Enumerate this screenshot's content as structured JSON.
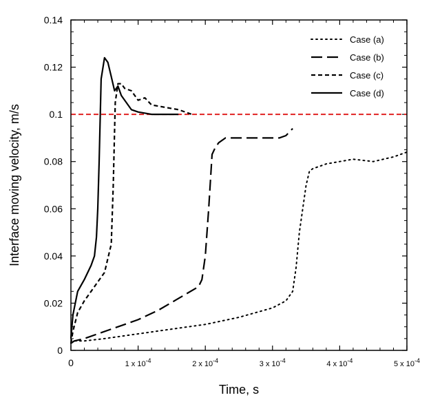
{
  "chart_data": {
    "type": "line",
    "title": "",
    "xlabel": "Time,  s",
    "ylabel": "Interface moving velocity,  m/s",
    "xlim": [
      0,
      0.0005
    ],
    "ylim": [
      0,
      0.14
    ],
    "x_ticks": [
      {
        "value": 0,
        "label": "0"
      },
      {
        "value": 0.0001,
        "label": "1 x 10",
        "exp": "-4"
      },
      {
        "value": 0.0002,
        "label": "2 x 10",
        "exp": "-4"
      },
      {
        "value": 0.0003,
        "label": "3 x 10",
        "exp": "-4"
      },
      {
        "value": 0.0004,
        "label": "4 x 10",
        "exp": "-4"
      },
      {
        "value": 0.0005,
        "label": "5 x 10",
        "exp": "-4"
      }
    ],
    "y_ticks": [
      {
        "value": 0,
        "label": "0"
      },
      {
        "value": 0.02,
        "label": "0.02"
      },
      {
        "value": 0.04,
        "label": "0.04"
      },
      {
        "value": 0.06,
        "label": "0.06"
      },
      {
        "value": 0.08,
        "label": "0.08"
      },
      {
        "value": 0.1,
        "label": "0.1"
      },
      {
        "value": 0.12,
        "label": "0.12"
      },
      {
        "value": 0.14,
        "label": "0.14"
      }
    ],
    "reference_line": {
      "y": 0.1,
      "color": "#e02020",
      "style": "dashed"
    },
    "legend_position": "top-right",
    "series": [
      {
        "name": "Case (a)",
        "style": "dotted",
        "color": "#000000",
        "x": [
          0,
          5e-06,
          2e-05,
          5e-05,
          0.0001,
          0.00015,
          0.0002,
          0.00025,
          0.0003,
          0.00032,
          0.00033,
          0.000335,
          0.00034,
          0.000345,
          0.00035,
          0.000355,
          0.00036,
          0.00037,
          0.00038,
          0.0004,
          0.00042,
          0.00045,
          0.00048,
          0.0005
        ],
        "values": [
          0.003,
          0.004,
          0.004,
          0.005,
          0.007,
          0.009,
          0.011,
          0.014,
          0.018,
          0.021,
          0.025,
          0.035,
          0.05,
          0.06,
          0.07,
          0.076,
          0.077,
          0.078,
          0.079,
          0.08,
          0.081,
          0.08,
          0.082,
          0.084
        ]
      },
      {
        "name": "Case (b)",
        "style": "long-dashed",
        "color": "#000000",
        "x": [
          0,
          5e-06,
          2e-05,
          4e-05,
          6e-05,
          8e-05,
          0.0001,
          0.00013,
          0.00016,
          0.00019,
          0.000195,
          0.0002,
          0.000205,
          0.00021,
          0.000215,
          0.00022,
          0.00023,
          0.00025,
          0.00028,
          0.00031,
          0.00032,
          0.00033
        ],
        "values": [
          0.003,
          0.004,
          0.005,
          0.007,
          0.009,
          0.011,
          0.013,
          0.017,
          0.022,
          0.027,
          0.03,
          0.04,
          0.06,
          0.083,
          0.086,
          0.088,
          0.09,
          0.09,
          0.09,
          0.09,
          0.091,
          0.094
        ]
      },
      {
        "name": "Case (c)",
        "style": "short-dashed",
        "color": "#000000",
        "x": [
          0,
          3e-06,
          1e-05,
          2e-05,
          3e-05,
          4e-05,
          5e-05,
          6e-05,
          6.3e-05,
          6.6e-05,
          7e-05,
          7.5e-05,
          8e-05,
          9e-05,
          0.0001,
          0.00011,
          0.00012,
          0.00014,
          0.00016,
          0.00018
        ],
        "values": [
          0.003,
          0.008,
          0.016,
          0.021,
          0.025,
          0.029,
          0.033,
          0.045,
          0.07,
          0.105,
          0.113,
          0.113,
          0.111,
          0.11,
          0.106,
          0.107,
          0.104,
          0.103,
          0.102,
          0.1
        ]
      },
      {
        "name": "Case (d)",
        "style": "solid",
        "color": "#000000",
        "x": [
          0,
          3e-06,
          1e-05,
          2e-05,
          3e-05,
          3.5e-05,
          3.8e-05,
          4e-05,
          4.2e-05,
          4.5e-05,
          5e-05,
          5.5e-05,
          6e-05,
          6.5e-05,
          7e-05,
          7.5e-05,
          8e-05,
          9e-05,
          0.0001,
          0.00012,
          0.00016
        ],
        "values": [
          0.005,
          0.015,
          0.025,
          0.03,
          0.036,
          0.04,
          0.048,
          0.06,
          0.08,
          0.115,
          0.124,
          0.122,
          0.116,
          0.11,
          0.112,
          0.108,
          0.106,
          0.102,
          0.101,
          0.1,
          0.1
        ]
      }
    ]
  }
}
